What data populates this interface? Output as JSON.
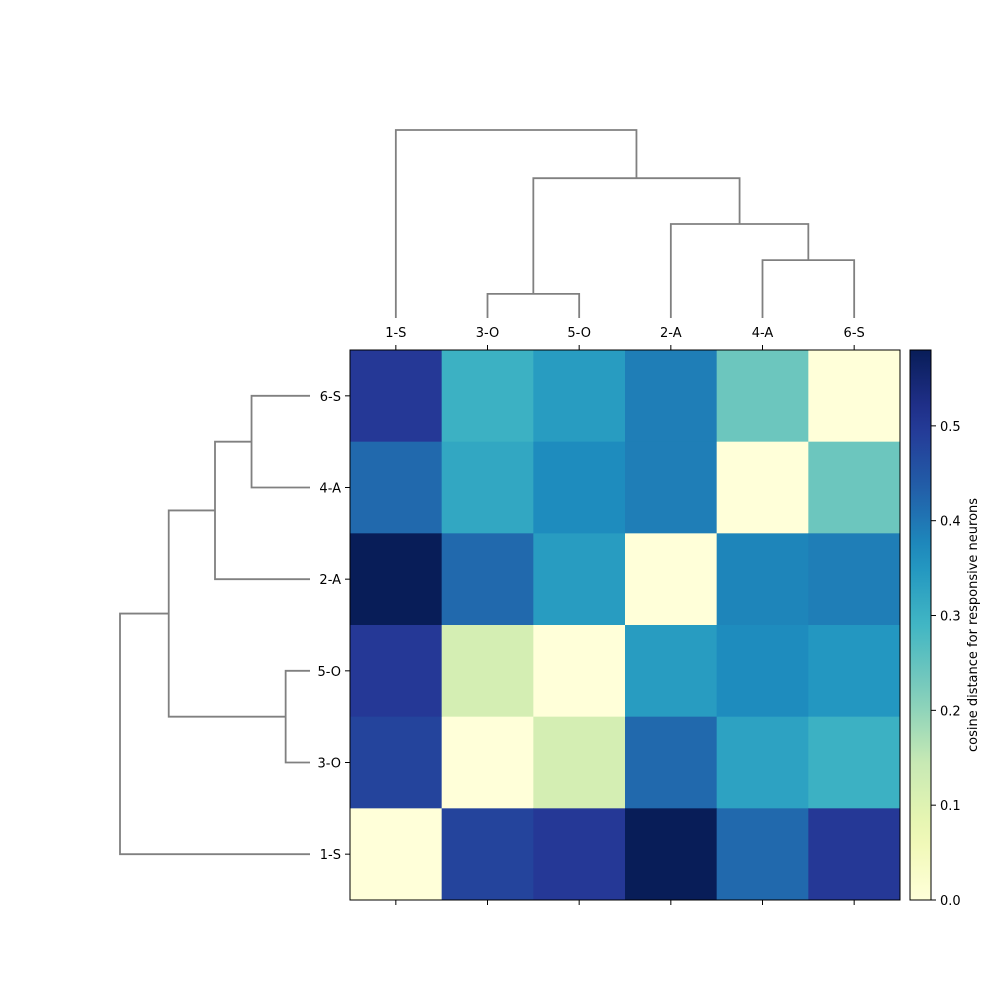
{
  "chart_data": {
    "type": "heatmap",
    "title": "",
    "xlabel": "",
    "ylabel": "",
    "col_labels": [
      "1-S",
      "3-O",
      "5-O",
      "2-A",
      "4-A",
      "6-S"
    ],
    "row_labels": [
      "6-S",
      "4-A",
      "2-A",
      "5-O",
      "3-O",
      "1-S"
    ],
    "values": [
      [
        0.5,
        0.3,
        0.34,
        0.39,
        0.24,
        0.0
      ],
      [
        0.42,
        0.32,
        0.37,
        0.39,
        0.0,
        0.24
      ],
      [
        0.58,
        0.42,
        0.34,
        0.0,
        0.38,
        0.39
      ],
      [
        0.5,
        0.12,
        0.0,
        0.34,
        0.37,
        0.35
      ],
      [
        0.48,
        0.0,
        0.12,
        0.42,
        0.33,
        0.3
      ],
      [
        0.0,
        0.48,
        0.5,
        0.58,
        0.42,
        0.5
      ]
    ],
    "colorbar": {
      "label": "cosine distance for responsive neurons",
      "min": 0.0,
      "max": 0.58,
      "ticks": [
        0.0,
        0.1,
        0.2,
        0.3,
        0.4,
        0.5
      ],
      "tick_labels": [
        "0.0",
        "0.1",
        "0.2",
        "0.3",
        "0.4",
        "0.5"
      ],
      "colormap": "YlGnBu"
    },
    "dendrogram_col": {
      "leaf_order": [
        "1-S",
        "3-O",
        "5-O",
        "2-A",
        "4-A",
        "6-S"
      ],
      "merges": [
        {
          "a": "3-O",
          "b": "5-O",
          "height": 0.1
        },
        {
          "a": "4-A",
          "b": "6-S",
          "height": 0.24
        },
        {
          "a": "2-A",
          "b": "(4-A,6-S)",
          "height": 0.39
        },
        {
          "a": "(3-O,5-O)",
          "b": "(2-A,4-A,6-S)",
          "height": 0.58
        },
        {
          "a": "1-S",
          "b": "(3-O,5-O,2-A,4-A,6-S)",
          "height": 0.78
        }
      ]
    },
    "dendrogram_row": {
      "leaf_order": [
        "6-S",
        "4-A",
        "2-A",
        "5-O",
        "3-O",
        "1-S"
      ],
      "merges": [
        {
          "a": "5-O",
          "b": "3-O",
          "height": 0.1
        },
        {
          "a": "6-S",
          "b": "4-A",
          "height": 0.24
        },
        {
          "a": "(6-S,4-A)",
          "b": "2-A",
          "height": 0.39
        },
        {
          "a": "(6-S,4-A,2-A)",
          "b": "(5-O,3-O)",
          "height": 0.58
        },
        {
          "a": "(6-S,4-A,2-A,5-O,3-O)",
          "b": "1-S",
          "height": 0.78
        }
      ]
    },
    "dendrogram_color": "#808080"
  }
}
